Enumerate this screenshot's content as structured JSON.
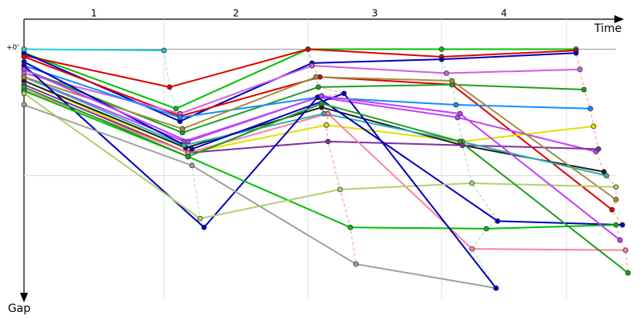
{
  "chart_data": {
    "type": "line",
    "x_label": "Time",
    "y_label": "Gap",
    "laps": [
      "1",
      "2",
      "3",
      "4"
    ],
    "lap_ends": [
      175,
      355,
      522,
      678
    ],
    "lap_line_colors": [
      "#a0e0e0",
      "#ff9090",
      "#90e0b0",
      "#ff9090",
      "#ff9090"
    ],
    "xlim": [
      0,
      750
    ],
    "ylim": [
      -0.25,
      2
    ],
    "yticks": [
      {
        "value": 0,
        "label": "+0'"
      },
      {
        "value": 1,
        "label": null
      }
    ],
    "grid": true,
    "series": [
      {
        "color": "#00c000",
        "x": [
          0,
          190,
          355,
          522,
          690
        ],
        "values": [
          0.03,
          0.47,
          0,
          0,
          0
        ]
      },
      {
        "color": "#e00000",
        "x": [
          0,
          182,
          355,
          522,
          690
        ],
        "values": [
          0.05,
          0.3,
          0,
          0.06,
          0.01
        ]
      },
      {
        "color": "#0000c0",
        "x": [
          0,
          195,
          360,
          522,
          690
        ],
        "values": [
          0.03,
          0.57,
          0.11,
          0.08,
          0.03
        ]
      },
      {
        "color": "#20d0d0",
        "x": [
          0,
          175
        ],
        "values": [
          0,
          0.01
        ]
      },
      {
        "color": "#e00000",
        "x": [
          0,
          195,
          370,
          535,
          735
        ],
        "values": [
          0.06,
          0.53,
          0.22,
          0.28,
          1.27
        ]
      },
      {
        "color": "#d060e0",
        "x": [
          0,
          195,
          360,
          528,
          695
        ],
        "values": [
          0.19,
          0.51,
          0.13,
          0.19,
          0.16
        ]
      },
      {
        "color": "#20a020",
        "x": [
          0,
          198,
          368,
          535,
          700
        ],
        "values": [
          0.16,
          0.66,
          0.3,
          0.28,
          0.32
        ]
      },
      {
        "color": "#1090ff",
        "x": [
          0,
          195,
          368,
          540,
          708
        ],
        "values": [
          0.13,
          0.54,
          0.38,
          0.44,
          0.47
        ]
      },
      {
        "color": "#e0e000",
        "x": [
          0,
          205,
          378,
          548,
          712
        ],
        "values": [
          0.25,
          0.82,
          0.6,
          0.73,
          0.61
        ]
      },
      {
        "color": "#c040ff",
        "x": [
          0,
          200,
          368,
          542,
          715
        ],
        "values": [
          0.22,
          0.73,
          0.38,
          0.54,
          0.81
        ]
      },
      {
        "color": "#202020",
        "x": [
          0,
          202,
          372,
          548,
          725
        ],
        "values": [
          0.25,
          0.78,
          0.46,
          0.76,
          0.97
        ]
      },
      {
        "color": "#8030a0",
        "x": [
          0,
          205,
          380,
          548,
          718
        ],
        "values": [
          0.28,
          0.82,
          0.73,
          0.76,
          0.79
        ]
      },
      {
        "color": "#30b0b0",
        "x": [
          0,
          200,
          375,
          546,
          728
        ],
        "values": [
          0.22,
          0.76,
          0.51,
          0.73,
          1.0
        ]
      },
      {
        "color": "#a09040",
        "x": [
          0,
          198,
          365,
          535,
          740
        ],
        "values": [
          0.22,
          0.63,
          0.22,
          0.25,
          1.19
        ]
      },
      {
        "color": "#ff80a0",
        "x": [
          0,
          205,
          380,
          560,
          752
        ],
        "values": [
          0.32,
          0.82,
          0.51,
          1.58,
          1.59
        ]
      },
      {
        "color": "#0000c0",
        "x": [
          0,
          225,
          367,
          592,
          748
        ],
        "values": [
          0.13,
          1.41,
          0.38,
          1.36,
          1.39
        ]
      },
      {
        "color": "#00c000",
        "x": [
          0,
          205,
          408,
          578,
          740
        ],
        "values": [
          0.33,
          0.85,
          1.41,
          1.42,
          1.39
        ]
      },
      {
        "color": "#b0d070",
        "x": [
          0,
          220,
          395,
          560,
          740
        ],
        "values": [
          0.35,
          1.34,
          1.11,
          1.06,
          1.09
        ]
      },
      {
        "color": "#a0a0a0",
        "x": [
          0,
          210,
          415,
          590
        ],
        "values": [
          0.44,
          0.92,
          1.7,
          1.89
        ]
      },
      {
        "color": "#0000c0",
        "x": [
          0,
          210,
          400,
          590
        ],
        "values": [
          0.1,
          0.79,
          0.35,
          1.89
        ]
      },
      {
        "color": "#c040ff",
        "x": [
          0,
          205,
          372,
          545,
          745
        ],
        "values": [
          0.16,
          0.73,
          0.37,
          0.51,
          1.51
        ]
      },
      {
        "color": "#20a020",
        "x": [
          0,
          205,
          372,
          545,
          755
        ],
        "values": [
          0.3,
          0.85,
          0.43,
          0.73,
          1.77
        ]
      }
    ]
  }
}
